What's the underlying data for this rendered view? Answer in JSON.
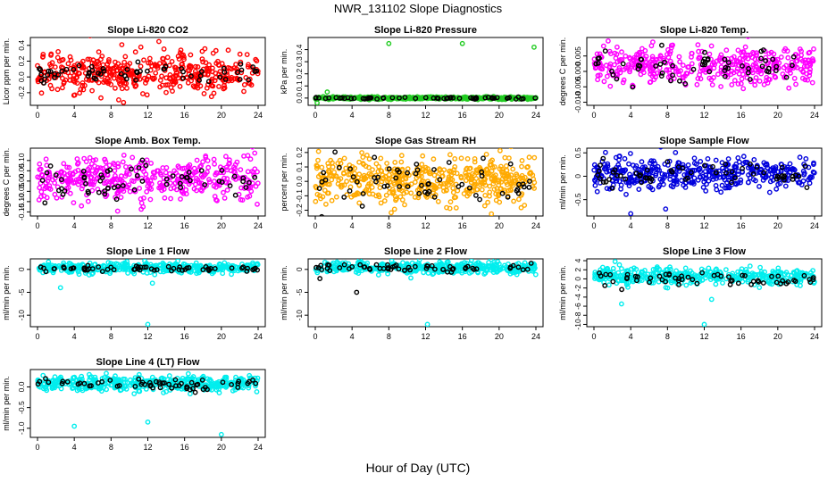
{
  "figure": {
    "title": "NWR_131102  Slope Diagnostics",
    "xlabel": "Hour of Day (UTC)"
  },
  "chart_data": [
    {
      "type": "scatter",
      "title": "Slope Li-820 CO2",
      "ylabel": "Licor ppm per min.",
      "xlim": [
        0,
        24
      ],
      "xticks": [
        0,
        4,
        8,
        12,
        16,
        20,
        24
      ],
      "ylim": [
        -0.36,
        0.5
      ],
      "yticks": [
        -0.2,
        0.0,
        0.2,
        0.4
      ],
      "ytick_labels": [
        "-0.2",
        "0.0",
        "0.2",
        "0.4"
      ],
      "series": [
        {
          "color": "#ff0000",
          "values": {
            "n": 420,
            "mean": 0.05,
            "sd": 0.13
          }
        },
        {
          "color": "#000000",
          "values": {
            "n": 60,
            "mean": 0.05,
            "sd": 0.07
          }
        }
      ]
    },
    {
      "type": "scatter",
      "title": "Slope Li-820 Pressure",
      "ylabel": "kPa per min.",
      "xlim": [
        0,
        24
      ],
      "xticks": [
        0,
        4,
        8,
        12,
        16,
        20,
        24
      ],
      "ylim": [
        -0.06,
        0.5
      ],
      "yticks": [
        0.0,
        0.1,
        0.2,
        0.3,
        0.4
      ],
      "ytick_labels": [
        "0.0",
        "0.1",
        "0.2",
        "0.3",
        "0.4"
      ],
      "series": [
        {
          "color": "#22cc22",
          "values": {
            "n": 420,
            "mean": 0.0,
            "sd": 0.005
          }
        },
        {
          "color": "#000000",
          "values": {
            "n": 60,
            "mean": 0.0,
            "sd": 0.004
          }
        }
      ],
      "outliers": [
        {
          "x": 8.0,
          "y": 0.45,
          "color": "#22cc22"
        },
        {
          "x": 16.0,
          "y": 0.45,
          "color": "#22cc22"
        },
        {
          "x": 23.8,
          "y": 0.42,
          "color": "#22cc22"
        },
        {
          "x": 0.2,
          "y": -0.04,
          "color": "#22cc22"
        },
        {
          "x": 1.3,
          "y": 0.05,
          "color": "#22cc22"
        }
      ]
    },
    {
      "type": "scatter",
      "title": "Slope Li-820 Temp.",
      "ylabel": "degrees C per min.",
      "xlim": [
        0,
        24
      ],
      "xticks": [
        0,
        4,
        8,
        12,
        16,
        20,
        24
      ],
      "ylim": [
        -0.011,
        0.011
      ],
      "yticks": [
        -0.01,
        -0.005,
        0.0,
        0.005
      ],
      "ytick_labels": [
        "-0.010",
        "-0.005",
        "0.000",
        "0.005"
      ],
      "series": [
        {
          "color": "#ff00ff",
          "values": {
            "n": 420,
            "mean": 0.002,
            "sd": 0.003
          }
        },
        {
          "color": "#000000",
          "values": {
            "n": 60,
            "mean": 0.002,
            "sd": 0.0025
          }
        }
      ]
    },
    {
      "type": "scatter",
      "title": "Slope Amb. Box Temp.",
      "ylabel": "degrees C per min.",
      "xlim": [
        0,
        24
      ],
      "xticks": [
        0,
        4,
        8,
        12,
        16,
        20,
        24
      ],
      "ylim": [
        -0.17,
        0.16
      ],
      "yticks": [
        -0.15,
        -0.1,
        -0.05,
        0.0,
        0.05,
        0.1
      ],
      "ytick_labels": [
        "-0.15",
        "-0.10",
        "-0.05",
        "0.00",
        "0.05",
        "0.10"
      ],
      "series": [
        {
          "color": "#ff00ff",
          "values": {
            "n": 420,
            "mean": 0.01,
            "sd": 0.05
          }
        },
        {
          "color": "#000000",
          "values": {
            "n": 60,
            "mean": 0.0,
            "sd": 0.04
          }
        }
      ]
    },
    {
      "type": "scatter",
      "title": "Slope Gas Stream RH",
      "ylabel": "percent per min.",
      "xlim": [
        0,
        24
      ],
      "xticks": [
        0,
        4,
        8,
        12,
        16,
        20,
        24
      ],
      "ylim": [
        -0.24,
        0.23
      ],
      "yticks": [
        -0.2,
        -0.1,
        0.0,
        0.1,
        0.2
      ],
      "ytick_labels": [
        "-0.2",
        "-0.1",
        "0.0",
        "0.1",
        "0.2"
      ],
      "series": [
        {
          "color": "#ffaa00",
          "values": {
            "n": 500,
            "mean": 0.0,
            "sd": 0.08
          }
        },
        {
          "color": "#000000",
          "values": {
            "n": 60,
            "mean": 0.0,
            "sd": 0.08
          }
        }
      ]
    },
    {
      "type": "scatter",
      "title": "Slope Sample Flow",
      "ylabel": "ml/min per min.",
      "xlim": [
        0,
        24
      ],
      "xticks": [
        0,
        4,
        8,
        12,
        16,
        20,
        24
      ],
      "ylim": [
        -0.85,
        0.6
      ],
      "yticks": [
        -0.5,
        0.0,
        0.5
      ],
      "ytick_labels": [
        "-0.5",
        "0",
        "0.5"
      ],
      "series": [
        {
          "color": "#0000dd",
          "values": {
            "n": 420,
            "mean": 0.05,
            "sd": 0.17
          }
        },
        {
          "color": "#000000",
          "values": {
            "n": 60,
            "mean": 0.05,
            "sd": 0.13
          }
        }
      ],
      "outliers": [
        {
          "x": 4.0,
          "y": -0.8,
          "color": "#0000dd"
        },
        {
          "x": 7.8,
          "y": -0.7,
          "color": "#0000dd"
        }
      ]
    },
    {
      "type": "scatter",
      "title": "Slope Line 1 Flow",
      "ylabel": "ml/min per min.",
      "xlim": [
        0,
        24
      ],
      "xticks": [
        0,
        4,
        8,
        12,
        16,
        20,
        24
      ],
      "ylim": [
        -12.5,
        2.3
      ],
      "yticks": [
        -10,
        -5,
        0
      ],
      "ytick_labels": [
        "-10",
        "-5",
        "0"
      ],
      "series": [
        {
          "color": "#00eeee",
          "values": {
            "n": 420,
            "mean": 0.3,
            "sd": 0.55
          }
        },
        {
          "color": "#000000",
          "values": {
            "n": 60,
            "mean": 0.2,
            "sd": 0.3
          }
        }
      ],
      "outliers": [
        {
          "x": 12.0,
          "y": -12.0,
          "color": "#00eeee"
        },
        {
          "x": 2.5,
          "y": -4.0,
          "color": "#00eeee"
        },
        {
          "x": 12.5,
          "y": -3.0,
          "color": "#00eeee"
        }
      ]
    },
    {
      "type": "scatter",
      "title": "Slope Line 2 Flow",
      "ylabel": "ml/min per min.",
      "xlim": [
        0,
        24
      ],
      "xticks": [
        0,
        4,
        8,
        12,
        16,
        20,
        24
      ],
      "ylim": [
        -12.5,
        2.3
      ],
      "yticks": [
        -10,
        -5,
        0
      ],
      "ytick_labels": [
        "-10",
        "-5",
        "0"
      ],
      "series": [
        {
          "color": "#00eeee",
          "values": {
            "n": 420,
            "mean": 0.4,
            "sd": 0.65
          }
        },
        {
          "color": "#000000",
          "values": {
            "n": 60,
            "mean": 0.3,
            "sd": 0.45
          }
        }
      ],
      "outliers": [
        {
          "x": 12.2,
          "y": -12.0,
          "color": "#00eeee"
        },
        {
          "x": 4.5,
          "y": -5.0,
          "color": "#000000"
        },
        {
          "x": 0.5,
          "y": -2.0,
          "color": "#000000"
        }
      ]
    },
    {
      "type": "scatter",
      "title": "Slope Line 3 Flow",
      "ylabel": "ml/min per min.",
      "xlim": [
        0,
        24
      ],
      "xticks": [
        0,
        4,
        8,
        12,
        16,
        20,
        24
      ],
      "ylim": [
        -10.5,
        4.4
      ],
      "yticks": [
        -10,
        -8,
        -6,
        -4,
        -2,
        0,
        2,
        4
      ],
      "ytick_labels": [
        "-10",
        "-8",
        "-6",
        "-4",
        "-2",
        "0",
        "2",
        "4"
      ],
      "series": [
        {
          "color": "#00eeee",
          "values": {
            "n": 420,
            "mean": 0.6,
            "sd": 0.85
          }
        },
        {
          "color": "#000000",
          "values": {
            "n": 60,
            "mean": 0.0,
            "sd": 0.7
          }
        }
      ],
      "outliers": [
        {
          "x": 12.0,
          "y": -10.0,
          "color": "#00eeee"
        },
        {
          "x": 3.0,
          "y": -5.5,
          "color": "#00eeee"
        },
        {
          "x": 12.8,
          "y": -4.5,
          "color": "#00eeee"
        },
        {
          "x": 2.3,
          "y": 3.8,
          "color": "#00eeee"
        }
      ]
    },
    {
      "type": "scatter",
      "title": "Slope Line 4 (LT) Flow",
      "ylabel": "ml/min per min.",
      "xlim": [
        0,
        24
      ],
      "xticks": [
        0,
        4,
        8,
        12,
        16,
        20,
        24
      ],
      "ylim": [
        -1.22,
        0.42
      ],
      "yticks": [
        -1.0,
        -0.5,
        0.0
      ],
      "ytick_labels": [
        "-1.0",
        "-0.5",
        "0.0"
      ],
      "series": [
        {
          "color": "#00eeee",
          "values": {
            "n": 420,
            "mean": 0.08,
            "sd": 0.09
          }
        },
        {
          "color": "#000000",
          "values": {
            "n": 60,
            "mean": 0.05,
            "sd": 0.08
          }
        }
      ],
      "outliers": [
        {
          "x": 4.0,
          "y": -0.95,
          "color": "#00eeee"
        },
        {
          "x": 12.0,
          "y": -0.85,
          "color": "#00eeee"
        },
        {
          "x": 20.0,
          "y": -1.15,
          "color": "#00eeee"
        }
      ]
    }
  ]
}
